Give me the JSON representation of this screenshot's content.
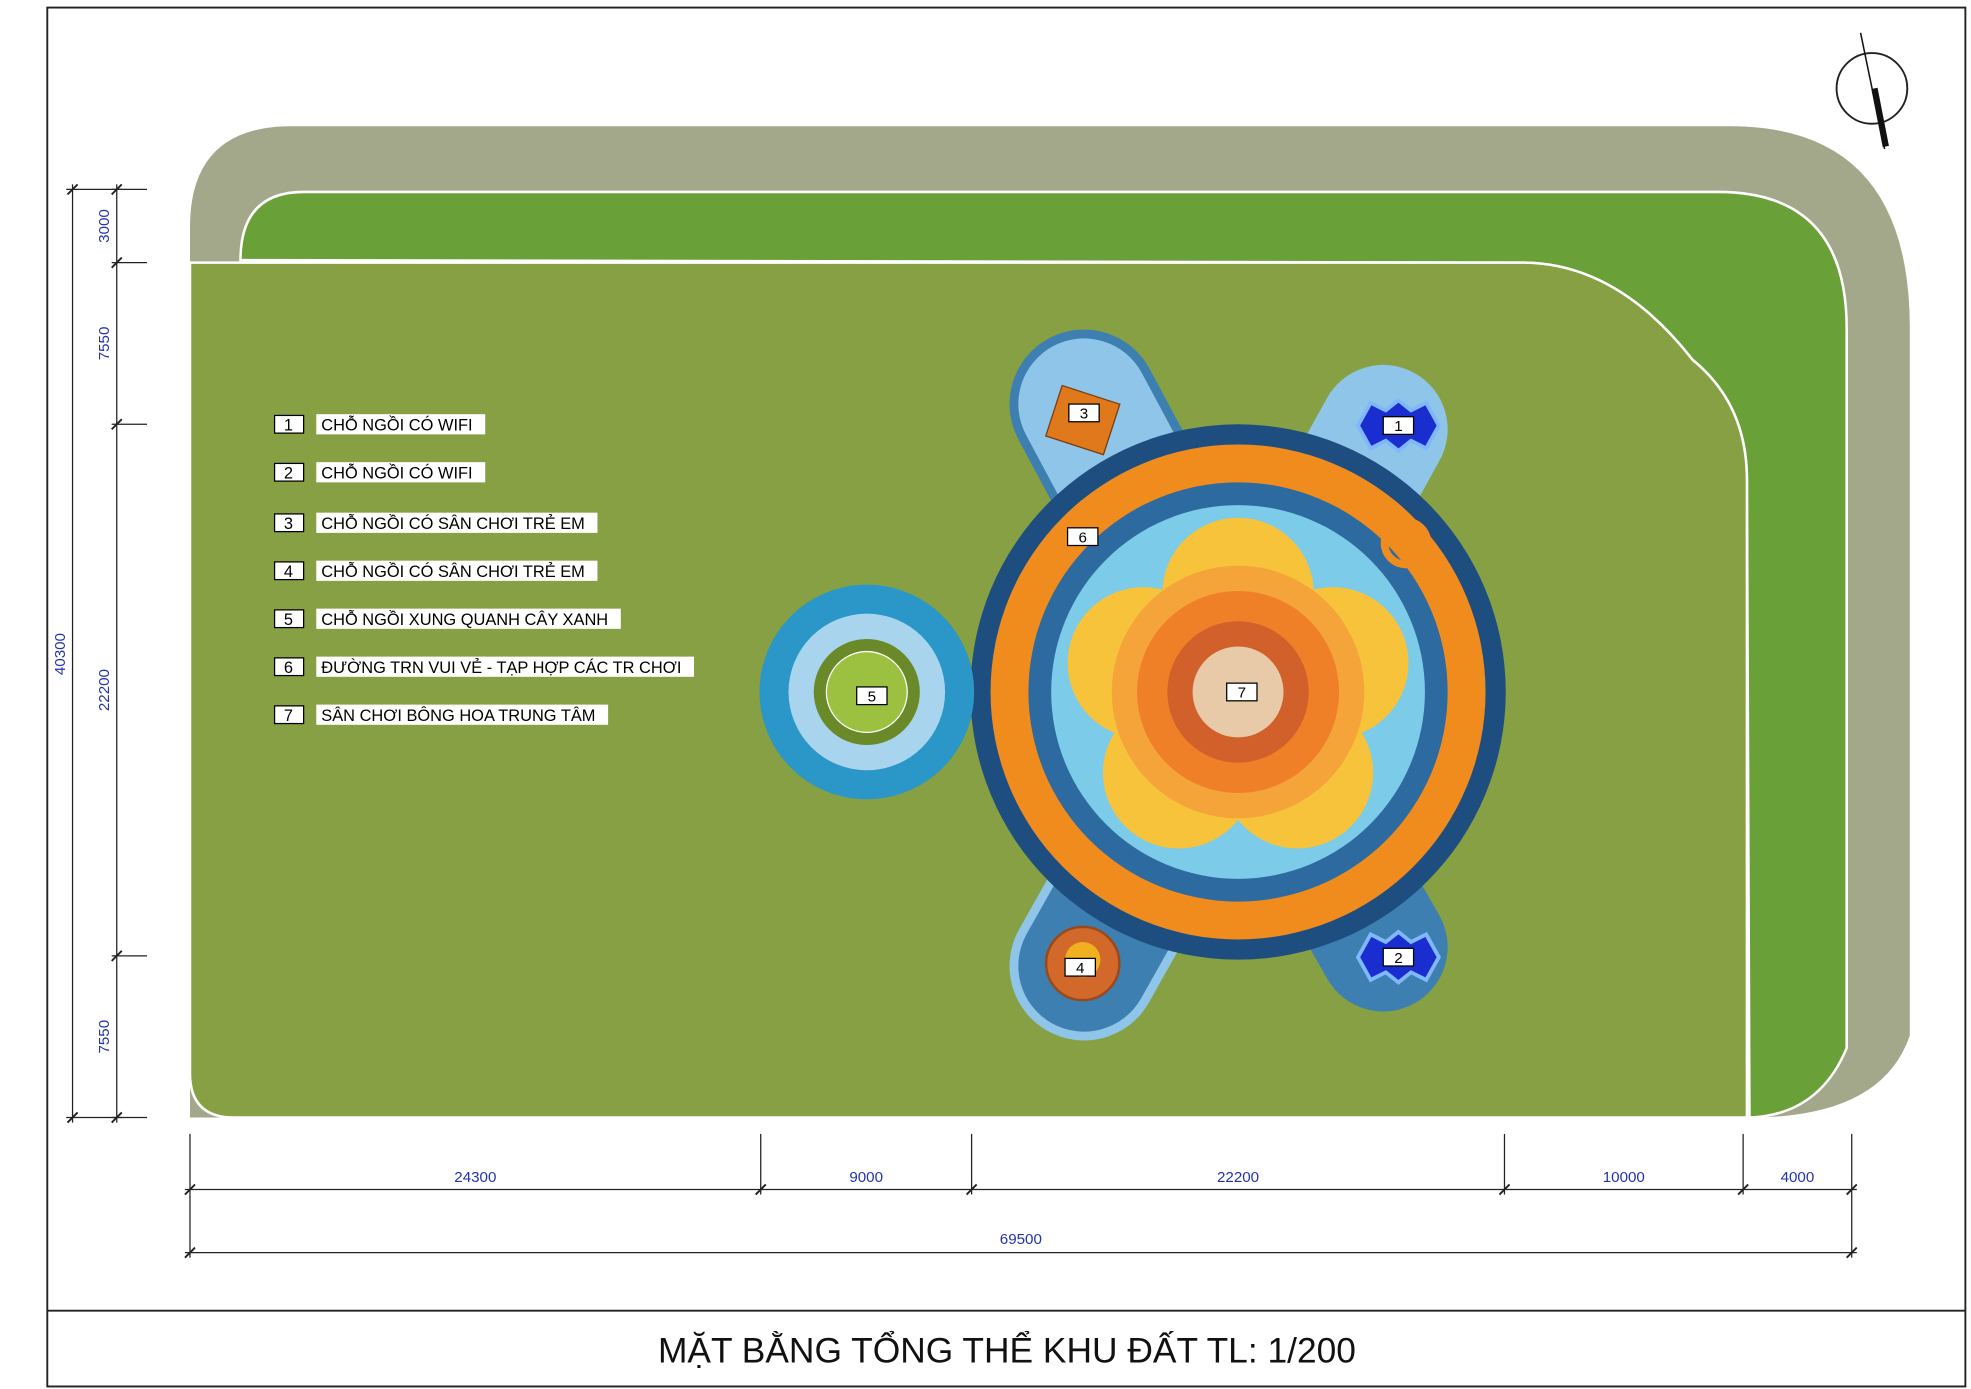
{
  "title": "MẶT BẰNG TỔNG THỂ KHU ĐẤT TL: 1/200",
  "legend": [
    {
      "number": "1",
      "label": "CHỖ NGỒI CÓ WIFI"
    },
    {
      "number": "2",
      "label": "CHỖ NGỒI CÓ WIFI"
    },
    {
      "number": "3",
      "label": "CHỖ NGỒI CÓ SÂN CHƠI TRẺ EM"
    },
    {
      "number": "4",
      "label": "CHỖ NGỒI CÓ SÂN CHƠI TRẺ EM"
    },
    {
      "number": "5",
      "label": "CHỖ NGỒI XUNG QUANH CÂY XANH"
    },
    {
      "number": "6",
      "label": "ĐƯỜNG TRN VUI VẺ - TẠP HỢP CÁC TR CHƠI"
    },
    {
      "number": "7",
      "label": "SÂN CHƠI BÔNG HOA TRUNG TÂM"
    }
  ],
  "plan_markers": [
    "1",
    "2",
    "3",
    "4",
    "5",
    "6",
    "7"
  ],
  "dimensions": {
    "horizontal": [
      24300,
      9000,
      22200,
      10000,
      4000
    ],
    "horizontal_total": 69500,
    "vertical": [
      3000,
      7550,
      22200,
      7550
    ],
    "vertical_total": 40300
  }
}
